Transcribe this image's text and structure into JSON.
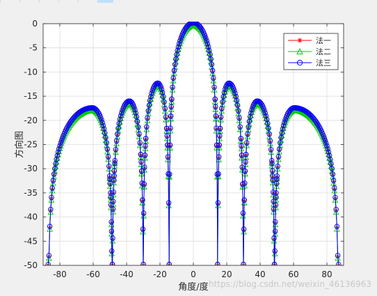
{
  "watermark": "https://blog.csdn.net/weixin_46136963",
  "chart_data": {
    "type": "line",
    "title": "",
    "xlabel": "角度/度",
    "ylabel": "方向图",
    "xlim": [
      -90,
      90
    ],
    "ylim": [
      -50,
      0
    ],
    "xticks": [
      -80,
      -60,
      -40,
      -20,
      0,
      20,
      40,
      60,
      80
    ],
    "yticks": [
      0,
      -5,
      -10,
      -15,
      -20,
      -25,
      -30,
      -35,
      -40,
      -45,
      -50
    ],
    "grid": true,
    "legend_position": "top-right",
    "x_range_plotted": [
      -87,
      87
    ],
    "lobes": [
      {
        "x_start": -87,
        "x_end": -48.6,
        "peak_x": -60.5,
        "peak_y": -17.6
      },
      {
        "x_start": -48.6,
        "x_end": -30,
        "peak_x": -38.3,
        "peak_y": -16.2
      },
      {
        "x_start": -30,
        "x_end": -14.5,
        "peak_x": -21.3,
        "peak_y": -12.5
      },
      {
        "x_start": -14.5,
        "x_end": 14.5,
        "peak_x": 0,
        "peak_y": 0
      },
      {
        "x_start": 14.5,
        "x_end": 30,
        "peak_x": 21.3,
        "peak_y": -12.5
      },
      {
        "x_start": 30,
        "x_end": 48.6,
        "peak_x": 38.3,
        "peak_y": -16.2
      },
      {
        "x_start": 48.6,
        "x_end": 87,
        "peak_x": 60.5,
        "peak_y": -17.6
      }
    ],
    "nulls_x": [
      -48.6,
      -30,
      -14.5,
      14.5,
      30,
      48.6
    ],
    "series": [
      {
        "name": "法一",
        "color": "#ff0000",
        "marker": "asterisk"
      },
      {
        "name": "法二",
        "color": "#00cc00",
        "marker": "triangle"
      },
      {
        "name": "法三",
        "color": "#0000ff",
        "marker": "circle"
      }
    ]
  }
}
